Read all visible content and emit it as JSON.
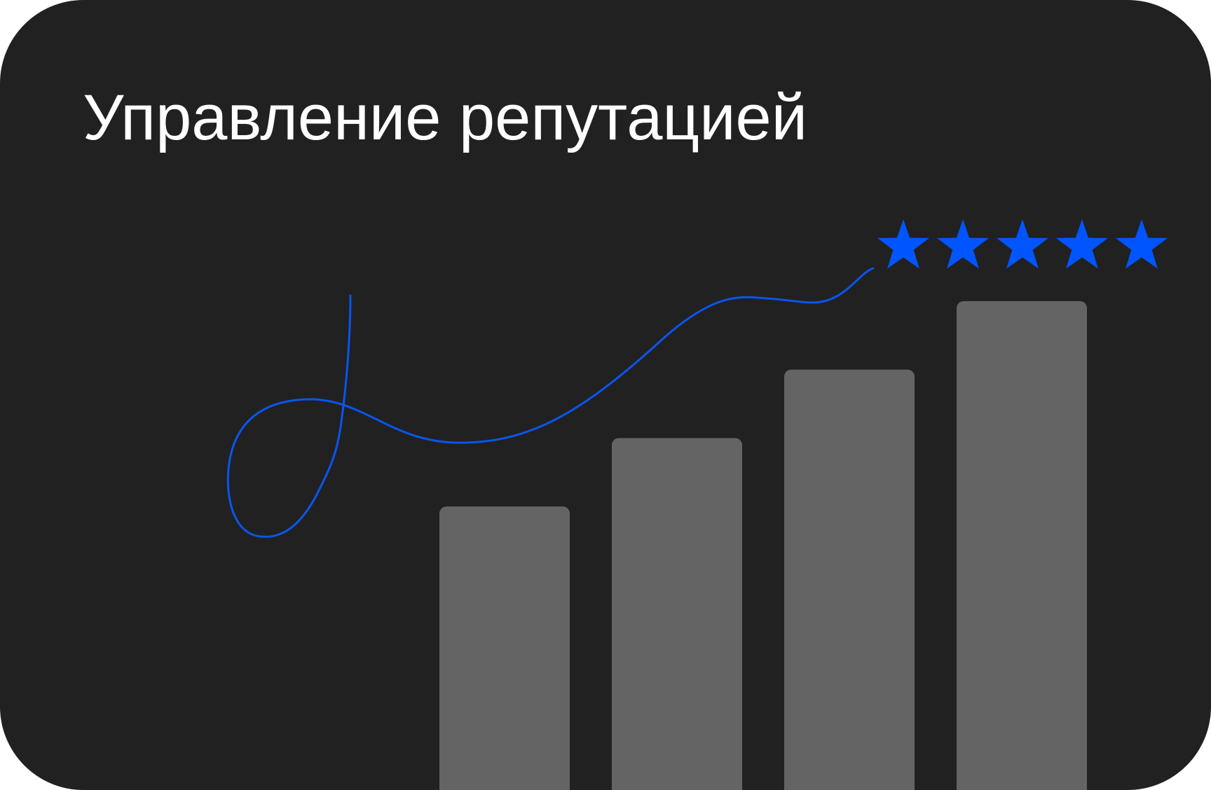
{
  "card": {
    "title": "Управление репутацией"
  },
  "rating": {
    "value": 5,
    "max": 5,
    "icon": "star-icon",
    "color": "#0055ff"
  },
  "bars": {
    "relative_heights": [
      0.58,
      0.72,
      0.86,
      1.0
    ],
    "color": "#646464"
  },
  "colors": {
    "background": "#212121",
    "accent": "#0055ff",
    "title": "#ffffff"
  }
}
